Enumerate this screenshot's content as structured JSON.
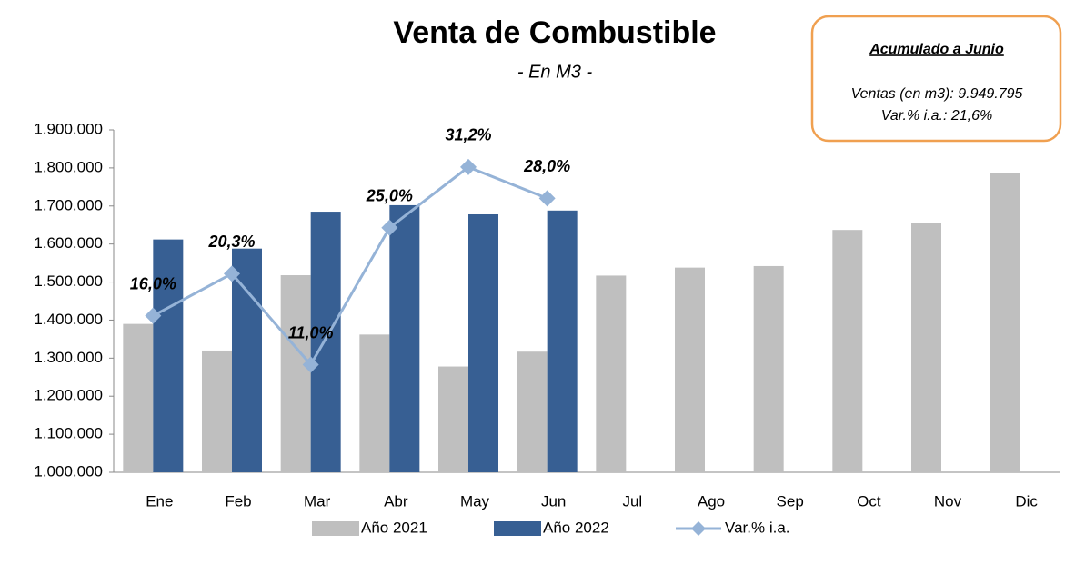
{
  "chart_data": {
    "type": "bar",
    "title": "Venta de Combustible",
    "subtitle": "- En M3 -",
    "annotation": {
      "title": "Acumulado a Junio",
      "lines": [
        "Ventas (en m3): 9.949.795",
        "Var.% i.a.: 21,6%"
      ]
    },
    "categories": [
      "Ene",
      "Feb",
      "Mar",
      "Abr",
      "May",
      "Jun",
      "Jul",
      "Ago",
      "Sep",
      "Oct",
      "Nov",
      "Dic"
    ],
    "series": [
      {
        "name": "Año 2021",
        "type": "bar",
        "color": "#bfbfbf",
        "values": [
          1390000,
          1320000,
          1518000,
          1362000,
          1278000,
          1317000,
          1517000,
          1538000,
          1542000,
          1637000,
          1655000,
          1787000
        ]
      },
      {
        "name": "Año 2022",
        "type": "bar",
        "color": "#375f93",
        "values": [
          1612000,
          1588000,
          1685000,
          1702000,
          1678000,
          1688000,
          null,
          null,
          null,
          null,
          null,
          null
        ]
      },
      {
        "name": "Var.% i.a.",
        "type": "line",
        "axis": "y2",
        "color": "#95b3d7",
        "values": [
          16.0,
          20.3,
          11.0,
          25.0,
          31.2,
          28.0,
          null,
          null,
          null,
          null,
          null,
          null
        ],
        "value_labels": [
          "16,0%",
          "20,3%",
          "11,0%",
          "25,0%",
          "31,2%",
          "28,0%",
          null,
          null,
          null,
          null,
          null,
          null
        ]
      }
    ],
    "ylim": [
      1000000,
      1900000
    ],
    "yticks": [
      {
        "value": 1000000,
        "label": "1.000.000"
      },
      {
        "value": 1100000,
        "label": "1.100.000"
      },
      {
        "value": 1200000,
        "label": "1.200.000"
      },
      {
        "value": 1300000,
        "label": "1.300.000"
      },
      {
        "value": 1400000,
        "label": "1.400.000"
      },
      {
        "value": 1500000,
        "label": "1.500.000"
      },
      {
        "value": 1600000,
        "label": "1.600.000"
      },
      {
        "value": 1700000,
        "label": "1.700.000"
      },
      {
        "value": 1800000,
        "label": "1.800.000"
      },
      {
        "value": 1900000,
        "label": "1.900.000"
      }
    ],
    "y2lim": [
      0,
      35
    ],
    "grid": false,
    "legend": "bottom"
  }
}
